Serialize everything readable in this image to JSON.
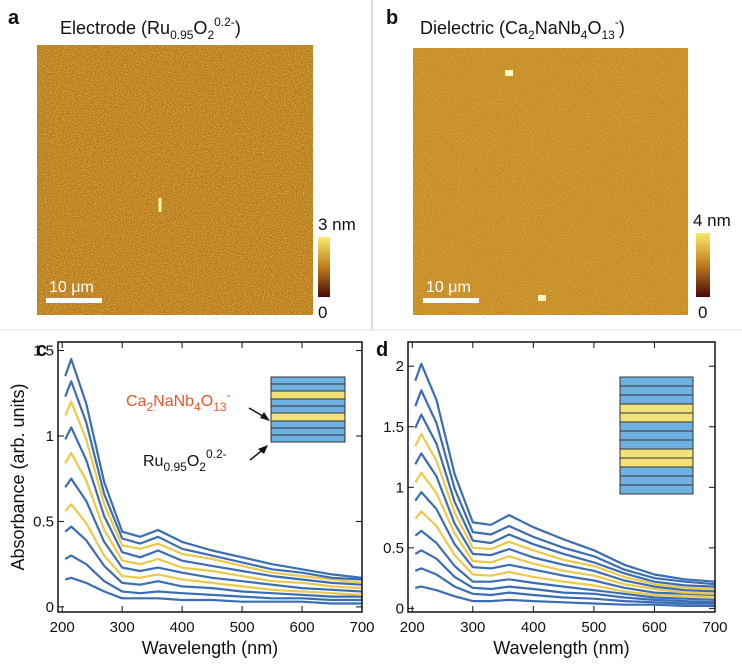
{
  "images": [
    {
      "label": "a",
      "title": [
        "Electrode (Ru",
        "0.95",
        "O",
        "2",
        "0.2-",
        ")"
      ],
      "colorbar_max": "3 nm",
      "colorbar_min": "0",
      "scalebar": "10 μm"
    },
    {
      "label": "b",
      "title": [
        "Dielectric (Ca",
        "2",
        "NaNb",
        "4",
        "O",
        "13",
        "-",
        ")"
      ],
      "colorbar_max": "4 nm",
      "colorbar_min": "0",
      "scalebar": "10 μm"
    }
  ],
  "chart_data": [
    {
      "type": "line",
      "label": "c",
      "xlabel": "Wavelength (nm)",
      "ylabel": "Absorbance (arb. units)",
      "annotations": [
        [
          "Ca",
          "2",
          "NaNb",
          "4",
          "O",
          "13",
          "-"
        ],
        [
          "Ru",
          "0.95",
          "O",
          "2",
          "0.2-"
        ]
      ],
      "annotation_color": "#e5582a",
      "xlim": [
        193,
        700
      ],
      "ylim": [
        -0.03,
        1.55
      ],
      "xticks": [
        200,
        300,
        400,
        500,
        600,
        700
      ],
      "yticks": [
        0,
        0.5,
        1,
        1.5
      ],
      "x": [
        205,
        215,
        240,
        270,
        300,
        330,
        360,
        400,
        450,
        500,
        550,
        600,
        650,
        700
      ],
      "series": [
        {
          "color": "#3a6db4",
          "values": [
            0.16,
            0.17,
            0.14,
            0.09,
            0.05,
            0.05,
            0.05,
            0.04,
            0.04,
            0.03,
            0.03,
            0.03,
            0.02,
            0.02
          ]
        },
        {
          "color": "#3a6db4",
          "values": [
            0.28,
            0.3,
            0.25,
            0.15,
            0.09,
            0.08,
            0.09,
            0.08,
            0.07,
            0.06,
            0.05,
            0.05,
            0.04,
            0.04
          ]
        },
        {
          "color": "#3a6db4",
          "values": [
            0.44,
            0.47,
            0.39,
            0.24,
            0.14,
            0.13,
            0.15,
            0.12,
            0.11,
            0.09,
            0.08,
            0.07,
            0.06,
            0.06
          ]
        },
        {
          "color": "#ecc94b",
          "values": [
            0.56,
            0.6,
            0.49,
            0.3,
            0.18,
            0.17,
            0.19,
            0.16,
            0.14,
            0.12,
            0.1,
            0.09,
            0.08,
            0.07
          ]
        },
        {
          "color": "#3a6db4",
          "values": [
            0.7,
            0.75,
            0.62,
            0.38,
            0.23,
            0.21,
            0.23,
            0.2,
            0.17,
            0.15,
            0.13,
            0.11,
            0.1,
            0.09
          ]
        },
        {
          "color": "#ecc94b",
          "values": [
            0.84,
            0.9,
            0.74,
            0.45,
            0.27,
            0.25,
            0.28,
            0.23,
            0.21,
            0.18,
            0.15,
            0.14,
            0.12,
            0.11
          ]
        },
        {
          "color": "#3a6db4",
          "values": [
            0.98,
            1.05,
            0.86,
            0.53,
            0.32,
            0.29,
            0.33,
            0.27,
            0.24,
            0.21,
            0.18,
            0.16,
            0.14,
            0.13
          ]
        },
        {
          "color": "#ecc94b",
          "values": [
            1.12,
            1.2,
            0.98,
            0.6,
            0.36,
            0.34,
            0.37,
            0.31,
            0.28,
            0.24,
            0.2,
            0.18,
            0.16,
            0.14
          ]
        },
        {
          "color": "#3a6db4",
          "values": [
            1.23,
            1.32,
            1.08,
            0.66,
            0.4,
            0.37,
            0.41,
            0.34,
            0.3,
            0.26,
            0.22,
            0.2,
            0.17,
            0.16
          ]
        },
        {
          "color": "#3a6db4",
          "values": [
            1.35,
            1.45,
            1.19,
            0.73,
            0.44,
            0.41,
            0.45,
            0.38,
            0.33,
            0.29,
            0.25,
            0.22,
            0.19,
            0.17
          ]
        }
      ]
    },
    {
      "type": "line",
      "label": "d",
      "xlabel": "Wavelength (nm)",
      "xlim": [
        193,
        700
      ],
      "ylim": [
        -0.03,
        2.2
      ],
      "xticks": [
        200,
        300,
        400,
        500,
        600,
        700
      ],
      "yticks": [
        0,
        0.5,
        1,
        1.5,
        2
      ],
      "x": [
        205,
        215,
        240,
        270,
        300,
        330,
        360,
        400,
        450,
        500,
        550,
        600,
        650,
        700
      ],
      "series": [
        {
          "color": "#3a6db4",
          "values": [
            0.17,
            0.18,
            0.15,
            0.1,
            0.06,
            0.06,
            0.07,
            0.06,
            0.05,
            0.04,
            0.03,
            0.03,
            0.02,
            0.02
          ]
        },
        {
          "color": "#3a6db4",
          "values": [
            0.31,
            0.33,
            0.28,
            0.18,
            0.12,
            0.11,
            0.13,
            0.11,
            0.09,
            0.08,
            0.06,
            0.05,
            0.04,
            0.04
          ]
        },
        {
          "color": "#3a6db4",
          "values": [
            0.45,
            0.48,
            0.41,
            0.26,
            0.17,
            0.16,
            0.18,
            0.16,
            0.13,
            0.12,
            0.09,
            0.07,
            0.06,
            0.05
          ]
        },
        {
          "color": "#3a6db4",
          "values": [
            0.6,
            0.64,
            0.54,
            0.35,
            0.22,
            0.22,
            0.24,
            0.21,
            0.18,
            0.15,
            0.12,
            0.09,
            0.08,
            0.07
          ]
        },
        {
          "color": "#ecc94b",
          "values": [
            0.74,
            0.8,
            0.68,
            0.44,
            0.28,
            0.27,
            0.3,
            0.26,
            0.22,
            0.19,
            0.14,
            0.11,
            0.1,
            0.09
          ]
        },
        {
          "color": "#3a6db4",
          "values": [
            0.89,
            0.96,
            0.82,
            0.53,
            0.34,
            0.33,
            0.36,
            0.32,
            0.27,
            0.23,
            0.17,
            0.13,
            0.12,
            0.11
          ]
        },
        {
          "color": "#ecc94b",
          "values": [
            1.04,
            1.12,
            0.95,
            0.62,
            0.39,
            0.38,
            0.43,
            0.37,
            0.31,
            0.27,
            0.2,
            0.16,
            0.13,
            0.12
          ]
        },
        {
          "color": "#3a6db4",
          "values": [
            1.19,
            1.28,
            1.09,
            0.7,
            0.45,
            0.44,
            0.49,
            0.42,
            0.36,
            0.31,
            0.23,
            0.18,
            0.15,
            0.14
          ]
        },
        {
          "color": "#ecc94b",
          "values": [
            1.34,
            1.44,
            1.22,
            0.79,
            0.5,
            0.49,
            0.55,
            0.48,
            0.4,
            0.35,
            0.26,
            0.2,
            0.17,
            0.16
          ]
        },
        {
          "color": "#3a6db4",
          "values": [
            1.49,
            1.6,
            1.36,
            0.88,
            0.56,
            0.54,
            0.61,
            0.53,
            0.45,
            0.38,
            0.29,
            0.22,
            0.19,
            0.18
          ]
        },
        {
          "color": "#3a6db4",
          "values": [
            1.67,
            1.8,
            1.53,
            0.99,
            0.63,
            0.61,
            0.68,
            0.59,
            0.5,
            0.43,
            0.32,
            0.25,
            0.22,
            0.2
          ]
        },
        {
          "color": "#3a6db4",
          "values": [
            1.88,
            2.02,
            1.72,
            1.11,
            0.71,
            0.69,
            0.77,
            0.67,
            0.57,
            0.48,
            0.36,
            0.28,
            0.24,
            0.22
          ]
        }
      ]
    }
  ]
}
